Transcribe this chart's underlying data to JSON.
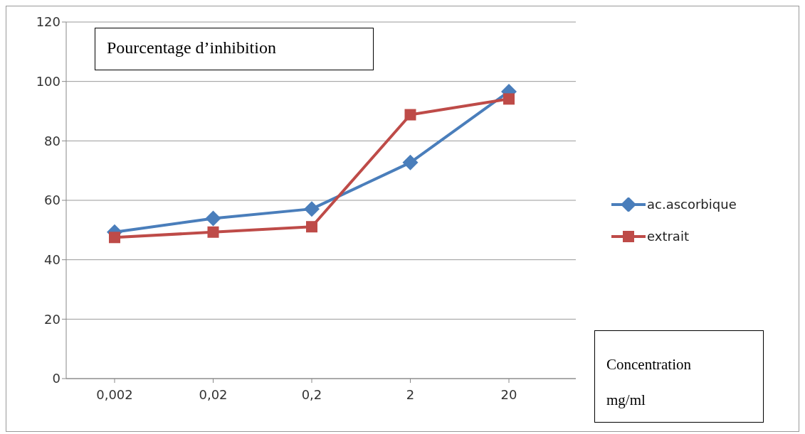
{
  "chart_data": {
    "type": "line",
    "title": "Pourcentage d’inhibition",
    "xlabel": "Concentration mg/ml",
    "categories": [
      "0,002",
      "0,02",
      "0,2",
      "2",
      "20"
    ],
    "series": [
      {
        "name": "ac.ascorbique",
        "color": "#4a7ebb",
        "marker": "diamond",
        "values": [
          49.3,
          53.9,
          57.1,
          72.7,
          96.6
        ]
      },
      {
        "name": "extrait",
        "color": "#be4b48",
        "marker": "square",
        "values": [
          47.5,
          49.3,
          51.1,
          88.8,
          94.1
        ]
      }
    ],
    "ylim": [
      0,
      120
    ],
    "yticks": [
      0,
      20,
      40,
      60,
      80,
      100,
      120
    ],
    "grid": "y",
    "legend": "right"
  }
}
